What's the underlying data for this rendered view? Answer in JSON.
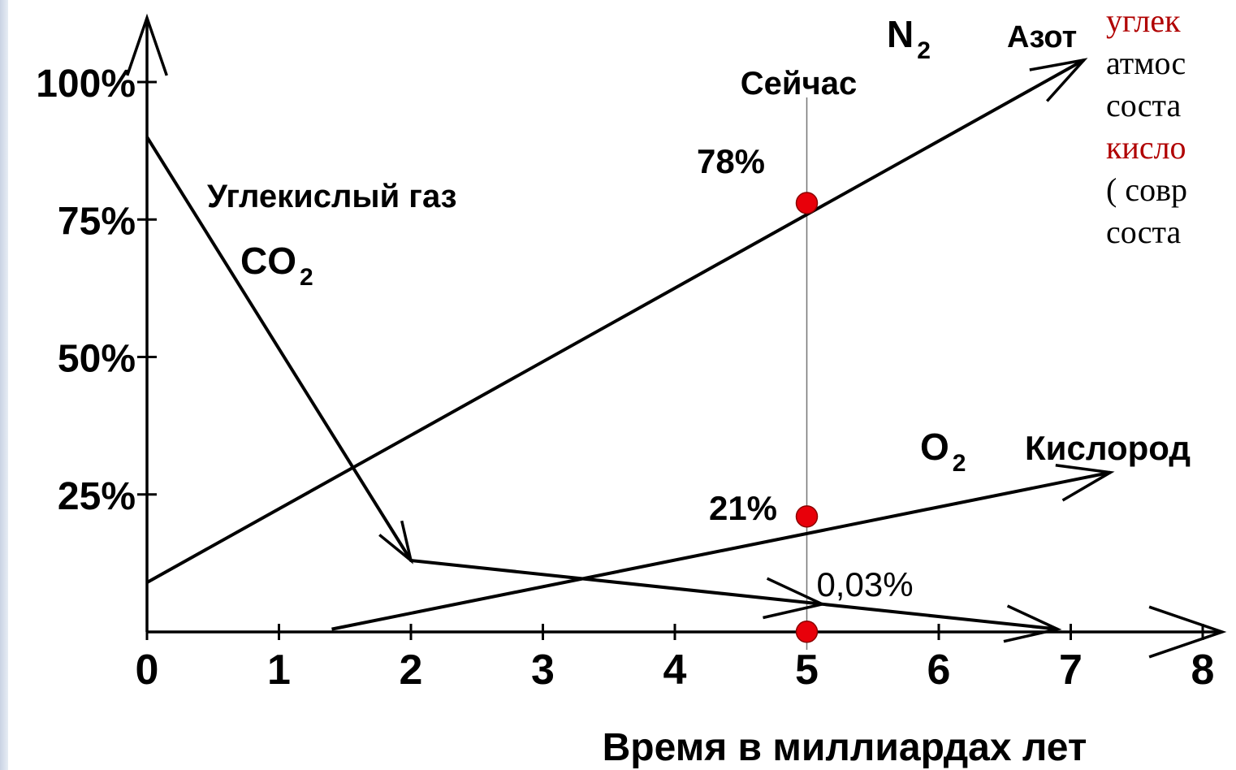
{
  "chart_data": {
    "type": "line",
    "xlabel": "Время в миллиардах  лет",
    "ylabel": "",
    "xlim": [
      0,
      8.5
    ],
    "ylim": [
      0,
      100
    ],
    "x_ticks": [
      "0",
      "1",
      "2",
      "3",
      "4",
      "5",
      "6",
      "7",
      "8"
    ],
    "y_ticks": [
      "25%",
      "50%",
      "75%",
      "100%"
    ],
    "now_marker": {
      "x": 5,
      "label": "Сейчас"
    },
    "series": [
      {
        "name": "Азот",
        "formula": "N",
        "subscript": "2",
        "color": "#000000",
        "x": [
          0,
          7.1
        ],
        "y": [
          9,
          104
        ]
      },
      {
        "name": "Углекислый газ",
        "formula": "CO",
        "subscript": "2",
        "color": "#000000",
        "x": [
          0,
          2,
          6.9
        ],
        "y": [
          90,
          13,
          0.5
        ]
      },
      {
        "name": "Кислород",
        "formula": "O",
        "subscript": "2",
        "color": "#000000",
        "x": [
          1.4,
          7.3
        ],
        "y": [
          0.5,
          29
        ]
      }
    ],
    "points": [
      {
        "x": 5,
        "y": 78,
        "label": "78%",
        "color": "#e8000a"
      },
      {
        "x": 5,
        "y": 21,
        "label": "21%",
        "color": "#e8000a"
      },
      {
        "x": 5,
        "y": 0.03,
        "label": "0,03%",
        "color": "#e8000a"
      }
    ]
  },
  "side_note": {
    "lines": [
      {
        "text": "углек",
        "color": "#b00000"
      },
      {
        "text": "атмос",
        "color": "#000000"
      },
      {
        "text": "соста",
        "color": "#000000"
      },
      {
        "text": "кисло",
        "color": "#b00000"
      },
      {
        "text": "( совр",
        "color": "#000000"
      },
      {
        "text": "соста",
        "color": "#000000"
      }
    ]
  }
}
